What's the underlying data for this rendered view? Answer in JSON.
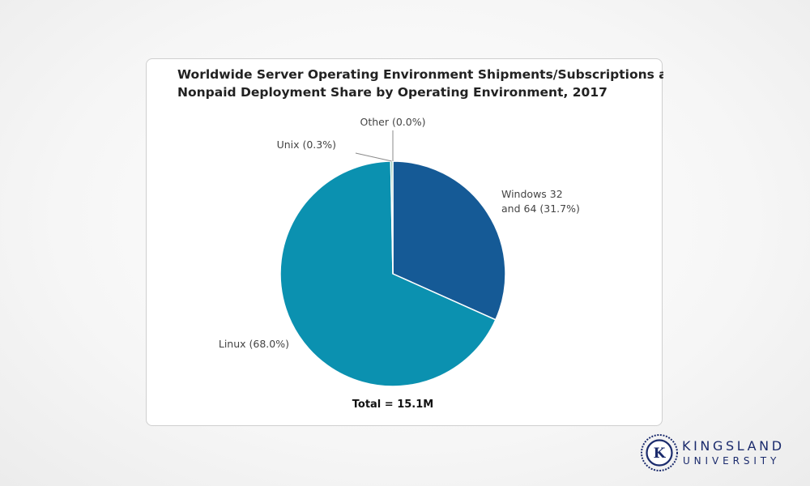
{
  "chart_data": {
    "type": "pie",
    "title_lines": [
      "Worldwide Server Operating Environment Shipments/Subscriptions and",
      "Nonpaid Deployment Share by Operating Environment, 2017"
    ],
    "slices": [
      {
        "label": "Windows 32 and 64",
        "label_lines": [
          "Windows 32",
          "and 64 (31.7%)"
        ],
        "value": 31.7,
        "color": "#155a96"
      },
      {
        "label": "Linux",
        "label_lines": [
          "Linux (68.0%)"
        ],
        "value": 68.0,
        "color": "#0b91b0"
      },
      {
        "label": "Unix",
        "label_lines": [
          "Unix (0.3%)"
        ],
        "value": 0.3,
        "color": "#7dbfa6"
      },
      {
        "label": "Other",
        "label_lines": [
          "Other (0.0%)"
        ],
        "value": 0.0,
        "color": "#9aa3ab"
      }
    ],
    "total_label": "Total = 15.1M",
    "start_angle": "12 o'clock",
    "direction": "clockwise"
  },
  "brand": {
    "monogram": "K",
    "line1": "KINGSLAND",
    "line2": "UNIVERSITY",
    "color": "#1a2a6c"
  }
}
